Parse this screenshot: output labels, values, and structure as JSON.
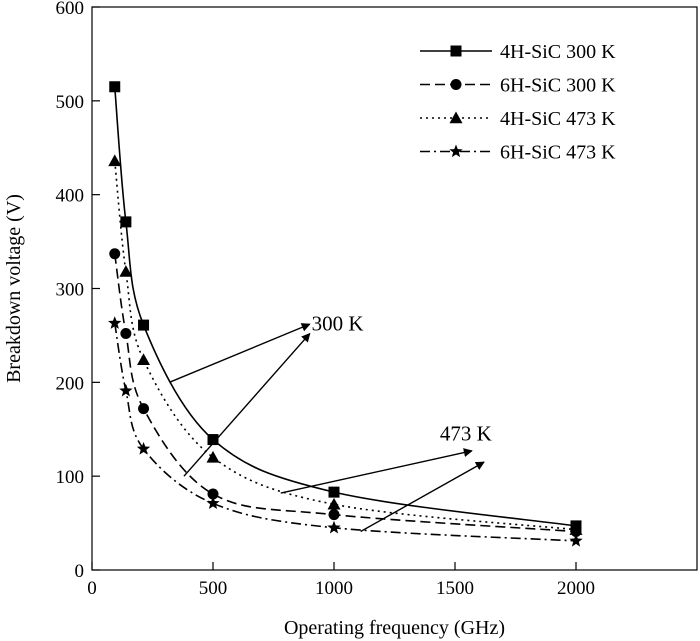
{
  "chart_data": {
    "type": "line",
    "xlabel": "Operating frequency (GHz)",
    "ylabel": "Breakdown voltage (V)",
    "xlim": [
      0,
      2500
    ],
    "ylim": [
      0,
      600
    ],
    "x_ticks": [
      0,
      500,
      1000,
      1500,
      2000
    ],
    "y_ticks": [
      0,
      100,
      200,
      300,
      400,
      500,
      600
    ],
    "grid": false,
    "legend_position": "top-right",
    "series": [
      {
        "name": "4H-SiC 300 K",
        "marker": "square",
        "dash": "solid",
        "points": [
          [
            94,
            515
          ],
          [
            140,
            371
          ],
          [
            213,
            261
          ],
          [
            500,
            139
          ],
          [
            1000,
            83
          ],
          [
            2000,
            47
          ]
        ]
      },
      {
        "name": "6H-SiC 300 K",
        "marker": "circle",
        "dash": "dashed",
        "points": [
          [
            94,
            337
          ],
          [
            140,
            252
          ],
          [
            213,
            172
          ],
          [
            500,
            81
          ],
          [
            1000,
            59
          ],
          [
            2000,
            41
          ]
        ]
      },
      {
        "name": "4H-SiC 473 K",
        "marker": "triangle",
        "dash": "dotted",
        "points": [
          [
            94,
            436
          ],
          [
            140,
            318
          ],
          [
            213,
            224
          ],
          [
            500,
            120
          ],
          [
            1000,
            70
          ],
          [
            2000,
            43
          ]
        ]
      },
      {
        "name": "6H-SiC 473 K",
        "marker": "star",
        "dash": "dashdot",
        "points": [
          [
            94,
            263
          ],
          [
            140,
            191
          ],
          [
            213,
            129
          ],
          [
            500,
            71
          ],
          [
            1000,
            45
          ],
          [
            2000,
            31
          ]
        ]
      }
    ],
    "annotations": [
      {
        "text": "300 K",
        "text_at": [
          1015,
          255
        ],
        "arrows": [
          {
            "from": [
              320,
              200
            ],
            "to": [
              900,
              262
            ]
          },
          {
            "from": [
              380,
              100
            ],
            "to": [
              900,
              252
            ]
          }
        ]
      },
      {
        "text": "473 K",
        "text_at": [
          1545,
          138
        ],
        "arrows": [
          {
            "from": [
              780,
              82
            ],
            "to": [
              1570,
              127
            ]
          },
          {
            "from": [
              1110,
              41
            ],
            "to": [
              1620,
              115
            ]
          }
        ]
      }
    ]
  }
}
